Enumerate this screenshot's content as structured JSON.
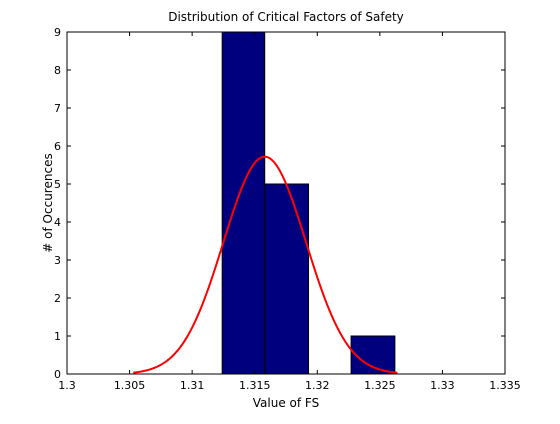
{
  "chart_data": {
    "type": "bar",
    "title": "Distribution of Critical Factors of Safety",
    "xlabel": "Value of FS",
    "ylabel": "# of Occurences",
    "xlim": [
      1.3,
      1.335
    ],
    "ylim": [
      0,
      9
    ],
    "xticks": [
      1.3,
      1.305,
      1.31,
      1.315,
      1.32,
      1.325,
      1.33,
      1.335
    ],
    "xtick_labels": [
      "1.3",
      "1.305",
      "1.31",
      "1.315",
      "1.32",
      "1.325",
      "1.33",
      "1.335"
    ],
    "yticks": [
      0,
      1,
      2,
      3,
      4,
      5,
      6,
      7,
      8,
      9
    ],
    "ytick_labels": [
      "0",
      "1",
      "2",
      "3",
      "4",
      "5",
      "6",
      "7",
      "8",
      "9"
    ],
    "grid": false,
    "bar_color": "#00007f",
    "bar_edge_color": "#000000",
    "bars": [
      {
        "x0": 1.3124,
        "x1": 1.3158,
        "count": 9
      },
      {
        "x0": 1.3158,
        "x1": 1.3193,
        "count": 5
      },
      {
        "x0": 1.3193,
        "x1": 1.3227,
        "count": 0
      },
      {
        "x0": 1.3227,
        "x1": 1.3262,
        "count": 1
      }
    ],
    "fit_curve": {
      "type": "normal",
      "color": "#ff0000",
      "x_start": 1.3053,
      "x_end": 1.3264,
      "mean": 1.3158,
      "sd": 0.0033,
      "peak": 5.72
    }
  }
}
